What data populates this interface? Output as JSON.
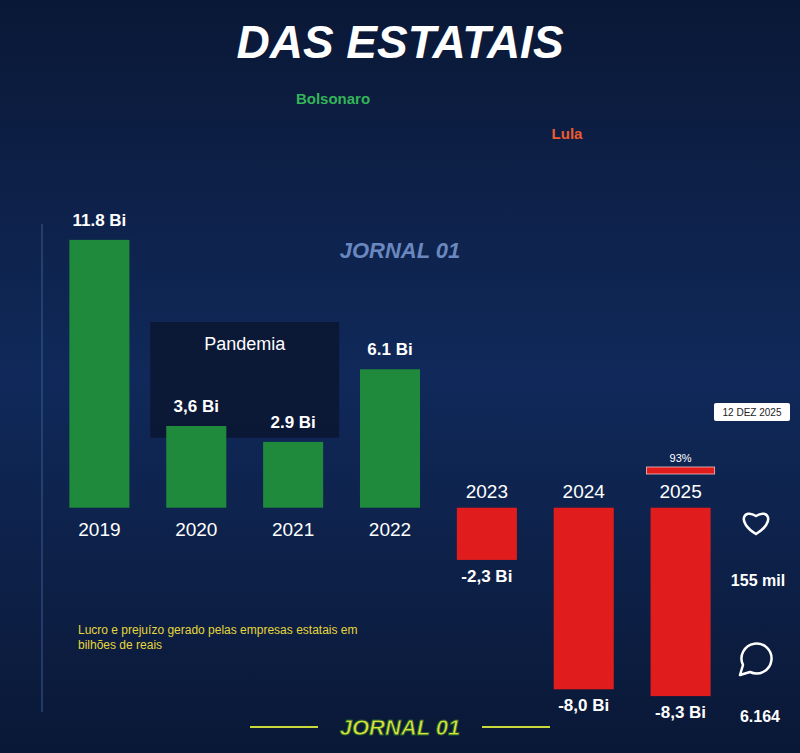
{
  "chart_data": {
    "type": "bar",
    "title": "DAS ESTATAIS",
    "subtitle": "Lucro e prejuízo gerado pelas empresas estatais em bilhões de reais",
    "categories": [
      "2019",
      "2020",
      "2021",
      "2022",
      "2023",
      "2024",
      "2025"
    ],
    "values": [
      11.8,
      3.6,
      2.9,
      6.1,
      -2.3,
      -8.0,
      -8.3
    ],
    "value_labels": [
      "11.8 Bi",
      "3,6 Bi",
      "2.9 Bi",
      "6.1 Bi",
      "-2,3 Bi",
      "-8,0 Bi",
      "-8,3 Bi"
    ],
    "colors": [
      "#1f8a3c",
      "#1f8a3c",
      "#1f8a3c",
      "#1f8a3c",
      "#e11c1c",
      "#e11c1c",
      "#e11c1c"
    ],
    "ylim": [
      -9,
      12.5
    ],
    "data_labels": true,
    "tick_labels": "x",
    "grid": false,
    "annotations": [
      "Bolsonaro",
      "Lula",
      "Pandemia",
      "JORNAL 01",
      "12 DEZ 2025",
      "93%",
      "155 mil",
      "6.164",
      "JORNAL 01"
    ]
  }
}
